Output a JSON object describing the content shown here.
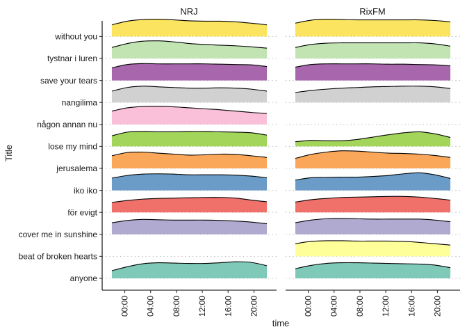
{
  "chart_data": {
    "type": "area",
    "subtype": "ridgeline",
    "xlabel": "time",
    "ylabel": "Title",
    "xlim_hours": [
      -3.5,
      23.5
    ],
    "x_ticks": [
      "00:00",
      "04:00",
      "08:00",
      "12:00",
      "16:00",
      "20:00"
    ],
    "x_tick_hours": [
      0,
      4,
      8,
      12,
      16,
      20
    ],
    "x_grid_hours": [
      -2,
      -1,
      0,
      1,
      2,
      3,
      4,
      5,
      6,
      7,
      8,
      9,
      10,
      11,
      12,
      13,
      14,
      15,
      16,
      17,
      18,
      19,
      20,
      21,
      22
    ],
    "facets": [
      "NRJ",
      "RixFM"
    ],
    "categories": [
      "anyone",
      "beat of broken hearts",
      "cover me in sunshine",
      "för evigt",
      "iko iko",
      "jerusalema",
      "lose my mind",
      "någon annan nu",
      "nangilima",
      "save your tears",
      "tystnar i luren",
      "without you"
    ],
    "colors": {
      "anyone": "#7fc9b8",
      "beat of broken hearts": "#ffff99",
      "cover me in sunshine": "#b1aad0",
      "för evigt": "#f0706a",
      "iko iko": "#6a9cc7",
      "jerusalema": "#fba75a",
      "lose my mind": "#a3d55a",
      "någon annan nu": "#fabfd9",
      "nangilima": "#d1d1d1",
      "save your tears": "#a867ad",
      "tystnar i luren": "#c2e4b3",
      "without you": "#fbe45f"
    },
    "density_scale_max": 0.065,
    "series": [
      {
        "facet": "NRJ",
        "ridges": [
          {
            "title": "anyone",
            "density": [
              0.023,
              0.035,
              0.044,
              0.047,
              0.046,
              0.045,
              0.045,
              0.047,
              0.05,
              0.048,
              0.038
            ]
          },
          {
            "title": "cover me in sunshine",
            "density": [
              0.035,
              0.042,
              0.045,
              0.044,
              0.043,
              0.043,
              0.043,
              0.042,
              0.04,
              0.037,
              0.032
            ]
          },
          {
            "title": "för evigt",
            "density": [
              0.03,
              0.036,
              0.04,
              0.042,
              0.043,
              0.044,
              0.045,
              0.045,
              0.043,
              0.037,
              0.032
            ]
          },
          {
            "title": "iko iko",
            "density": [
              0.037,
              0.045,
              0.049,
              0.05,
              0.049,
              0.047,
              0.047,
              0.047,
              0.046,
              0.043,
              0.038
            ]
          },
          {
            "title": "jerusalema",
            "density": [
              0.038,
              0.048,
              0.049,
              0.046,
              0.043,
              0.04,
              0.041,
              0.043,
              0.042,
              0.038,
              0.033
            ]
          },
          {
            "title": "lose my mind",
            "density": [
              0.032,
              0.043,
              0.045,
              0.044,
              0.044,
              0.045,
              0.045,
              0.044,
              0.043,
              0.041,
              0.034
            ]
          },
          {
            "title": "någon annan nu",
            "density": [
              0.04,
              0.05,
              0.054,
              0.055,
              0.053,
              0.05,
              0.047,
              0.044,
              0.04,
              0.036,
              0.033
            ]
          },
          {
            "title": "nangilima",
            "density": [
              0.034,
              0.045,
              0.049,
              0.047,
              0.045,
              0.043,
              0.043,
              0.044,
              0.043,
              0.04,
              0.034
            ]
          },
          {
            "title": "save your tears",
            "density": [
              0.038,
              0.048,
              0.051,
              0.05,
              0.05,
              0.05,
              0.05,
              0.049,
              0.048,
              0.047,
              0.042
            ]
          },
          {
            "title": "tystnar i luren",
            "density": [
              0.033,
              0.045,
              0.052,
              0.053,
              0.05,
              0.045,
              0.042,
              0.04,
              0.038,
              0.035,
              0.031
            ]
          },
          {
            "title": "without you",
            "density": [
              0.035,
              0.046,
              0.051,
              0.052,
              0.05,
              0.047,
              0.046,
              0.046,
              0.044,
              0.04,
              0.035
            ]
          }
        ]
      },
      {
        "facet": "RixFM",
        "ridges": [
          {
            "title": "anyone",
            "density": [
              0.029,
              0.039,
              0.045,
              0.047,
              0.047,
              0.046,
              0.045,
              0.044,
              0.043,
              0.04,
              0.032
            ]
          },
          {
            "title": "beat of broken hearts",
            "density": [
              0.038,
              0.045,
              0.047,
              0.047,
              0.046,
              0.046,
              0.046,
              0.045,
              0.042,
              0.038,
              0.034
            ]
          },
          {
            "title": "cover me in sunshine",
            "density": [
              0.035,
              0.043,
              0.047,
              0.048,
              0.047,
              0.046,
              0.046,
              0.046,
              0.046,
              0.043,
              0.038
            ]
          },
          {
            "title": "för evigt",
            "density": [
              0.031,
              0.038,
              0.042,
              0.045,
              0.046,
              0.047,
              0.048,
              0.048,
              0.046,
              0.042,
              0.037
            ]
          },
          {
            "title": "iko iko",
            "density": [
              0.031,
              0.038,
              0.039,
              0.04,
              0.04,
              0.042,
              0.045,
              0.05,
              0.053,
              0.047,
              0.036
            ]
          },
          {
            "title": "jerusalema",
            "density": [
              0.03,
              0.042,
              0.049,
              0.053,
              0.052,
              0.049,
              0.046,
              0.045,
              0.043,
              0.039,
              0.033
            ]
          },
          {
            "title": "lose my mind",
            "density": [
              0.014,
              0.018,
              0.017,
              0.017,
              0.021,
              0.028,
              0.035,
              0.041,
              0.044,
              0.038,
              0.027
            ]
          },
          {
            "title": "nangilima",
            "density": [
              0.03,
              0.036,
              0.04,
              0.043,
              0.045,
              0.047,
              0.048,
              0.049,
              0.049,
              0.047,
              0.042
            ]
          },
          {
            "title": "save your tears",
            "density": [
              0.04,
              0.048,
              0.05,
              0.05,
              0.05,
              0.05,
              0.049,
              0.049,
              0.048,
              0.047,
              0.044
            ]
          },
          {
            "title": "tystnar i luren",
            "density": [
              0.033,
              0.042,
              0.046,
              0.047,
              0.047,
              0.047,
              0.047,
              0.047,
              0.047,
              0.044,
              0.037
            ]
          },
          {
            "title": "without you",
            "density": [
              0.04,
              0.049,
              0.052,
              0.051,
              0.05,
              0.05,
              0.05,
              0.05,
              0.05,
              0.048,
              0.044
            ]
          }
        ]
      }
    ],
    "grid": false,
    "legend": "none"
  }
}
